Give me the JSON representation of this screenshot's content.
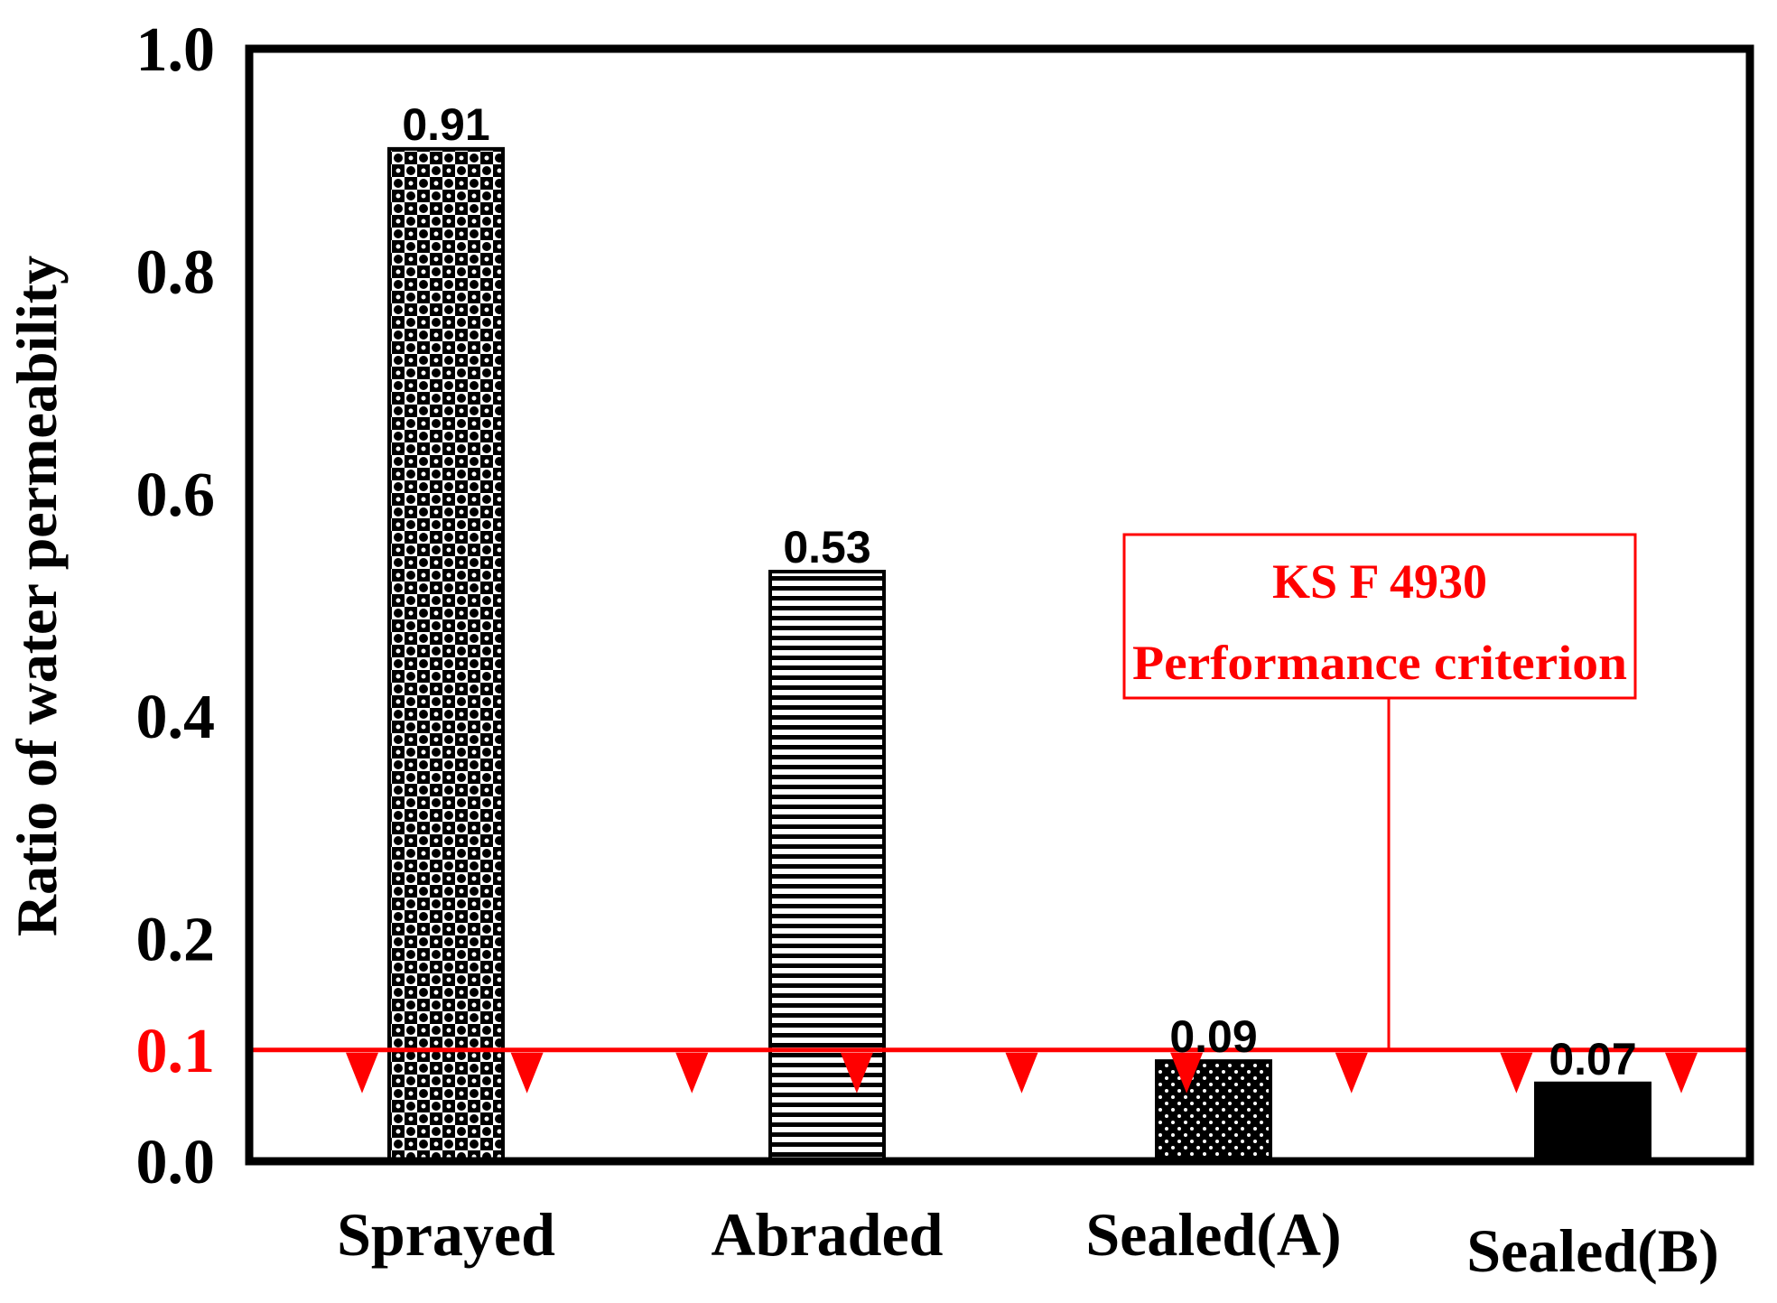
{
  "chart_data": {
    "type": "bar",
    "title": "",
    "xlabel": "",
    "ylabel": "Ratio of water permeability",
    "categories": [
      "Sprayed",
      "Abraded",
      "Sealed(A)",
      "Sealed(B)"
    ],
    "values": [
      0.91,
      0.53,
      0.09,
      0.07
    ],
    "value_labels": [
      "0.91",
      "0.53",
      "0.09",
      "0.07"
    ],
    "patterns": [
      "checker-dots",
      "horizontal-lines",
      "dotted-dark",
      "solid-black"
    ],
    "ylim": [
      0.0,
      1.0
    ],
    "yticks": [
      0.0,
      0.1,
      0.2,
      0.4,
      0.6,
      0.8,
      1.0
    ],
    "ytick_labels": [
      "0.0",
      "0.1",
      "0.2",
      "0.4",
      "0.6",
      "0.8",
      "1.0"
    ],
    "grid": false,
    "reference_line": {
      "value": 0.1,
      "label_line1": "KS F 4930",
      "label_line2": "Performance criterion",
      "color": "#ff0000",
      "marker_count": 9
    },
    "colors": {
      "axis": "#000000",
      "criterion": "#ff0000",
      "bar_fill": "#000000"
    }
  }
}
